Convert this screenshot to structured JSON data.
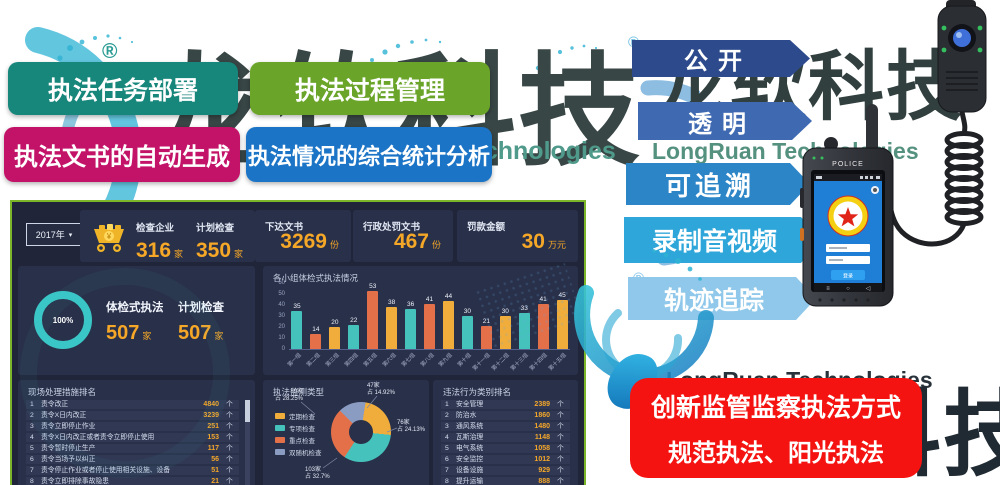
{
  "watermarks": {
    "brand_cn": "龙软科技",
    "brand_en": "LongRuan Technologies",
    "registered": "®"
  },
  "feature_buttons": [
    {
      "label": "执法任务部署",
      "color": "#17867b"
    },
    {
      "label": "执法过程管理",
      "color": "#6aa428"
    },
    {
      "label": "执法文书的自动生成",
      "color": "#c31368"
    },
    {
      "label": "执法情况的综合统计分析",
      "color": "#1b74c6"
    }
  ],
  "arrow_tags": [
    {
      "label": "公开",
      "color": "#2c4a8c"
    },
    {
      "label": "透明",
      "color": "#3f6ab2"
    },
    {
      "label": "可追溯",
      "color": "#2c85c7"
    },
    {
      "label": "录制音视频",
      "color": "#2ea6d9"
    },
    {
      "label": "轨迹追踪",
      "color": "#8fc8ea"
    }
  ],
  "slogan_box": {
    "line1": "创新监管监察执法方式",
    "line2": "规范执法、阳光执法",
    "color": "#f41310"
  },
  "device": {
    "label": "POLICE",
    "screen_button": "登录"
  },
  "dashboard": {
    "year_select": "2017年",
    "stat_cards": [
      {
        "label": "检查企业",
        "value": "316",
        "unit": "家"
      },
      {
        "label": "计划检查",
        "value": "350",
        "unit": "家"
      },
      {
        "label": "下达文书",
        "value": "3269",
        "unit": "份"
      },
      {
        "label": "行政处罚文书",
        "value": "467",
        "unit": "份"
      },
      {
        "label": "罚款金额",
        "value": "30",
        "unit": "万元"
      }
    ],
    "gauge": {
      "percent": "100%",
      "stats": [
        {
          "label": "体检式执法",
          "value": "507",
          "unit": "家"
        },
        {
          "label": "计划检查",
          "value": "507",
          "unit": "家"
        }
      ]
    }
  },
  "chart_data": [
    {
      "type": "bar",
      "title": "各小组体检式执法情况",
      "categories": [
        "第一组",
        "第二组",
        "第三组",
        "第四组",
        "第五组",
        "第六组",
        "第七组",
        "第八组",
        "第九组",
        "第十组",
        "第十一组",
        "第十二组",
        "第十三组",
        "第十四组",
        "第十五组"
      ],
      "values": [
        35,
        14,
        20,
        22,
        53,
        38,
        36,
        41,
        44,
        30,
        21,
        30,
        33,
        41,
        45
      ],
      "colors": [
        "#46c2bc",
        "#e4704a",
        "#f0ad3b"
      ],
      "xlabel": "",
      "ylabel": "",
      "ylim": [
        0,
        60
      ],
      "yticks": [
        60,
        50,
        40,
        30,
        20,
        10,
        0
      ],
      "grid": false,
      "legend_position": "none"
    },
    {
      "type": "pie",
      "title": "执法监测类型",
      "unit": "家",
      "legend": [
        {
          "label": "定期检查",
          "color": "#f0ad3b"
        },
        {
          "label": "专项检查",
          "color": "#46c2bc"
        },
        {
          "label": "重点检查",
          "color": "#e4704a"
        },
        {
          "label": "双随机检查",
          "color": "#8a9cc2"
        }
      ],
      "slices": [
        {
          "label": "双随机检查",
          "value": 47,
          "display": "47家",
          "pct_display": "占 14.92%",
          "color": "#8a9cc2"
        },
        {
          "label": "定期检查",
          "value": 76,
          "display": "76家",
          "pct_display": "占 24.13%",
          "color": "#f0ad3b"
        },
        {
          "label": "专项检查",
          "value": 103,
          "display": "103家",
          "pct_display": "占 32.7%",
          "color": "#46c2bc"
        },
        {
          "label": "重点检查",
          "value": 89,
          "display": "89家",
          "pct_display": "占 28.25%",
          "color": "#e4704a"
        }
      ],
      "legend_position": "left"
    },
    {
      "type": "table",
      "title": "现场处理措施排名",
      "unit": "个",
      "rows": [
        {
          "rank": "1",
          "name": "责令改正",
          "value": "4840"
        },
        {
          "rank": "2",
          "name": "责令X日内改正",
          "value": "3239"
        },
        {
          "rank": "3",
          "name": "责令立即停止作业",
          "value": "251"
        },
        {
          "rank": "4",
          "name": "责令X日内改正或者责令立即停止使用",
          "value": "153"
        },
        {
          "rank": "5",
          "name": "责令暂时停止生产",
          "value": "117"
        },
        {
          "rank": "6",
          "name": "责令当场予以纠正",
          "value": "56"
        },
        {
          "rank": "7",
          "name": "责令停止作业或者停止使用相关设施、设备",
          "value": "51"
        },
        {
          "rank": "8",
          "name": "责令立即排除事故隐患",
          "value": "21"
        }
      ]
    },
    {
      "type": "table",
      "title": "违法行为类别排名",
      "unit": "个",
      "rows": [
        {
          "rank": "1",
          "name": "安全管理",
          "value": "2389"
        },
        {
          "rank": "2",
          "name": "防治水",
          "value": "1860"
        },
        {
          "rank": "3",
          "name": "通风系统",
          "value": "1480"
        },
        {
          "rank": "4",
          "name": "瓦斯治理",
          "value": "1148"
        },
        {
          "rank": "5",
          "name": "电气系统",
          "value": "1058"
        },
        {
          "rank": "6",
          "name": "安全监控",
          "value": "1012"
        },
        {
          "rank": "7",
          "name": "设备设施",
          "value": "929"
        },
        {
          "rank": "8",
          "name": "提升运输",
          "value": "888"
        }
      ]
    }
  ]
}
